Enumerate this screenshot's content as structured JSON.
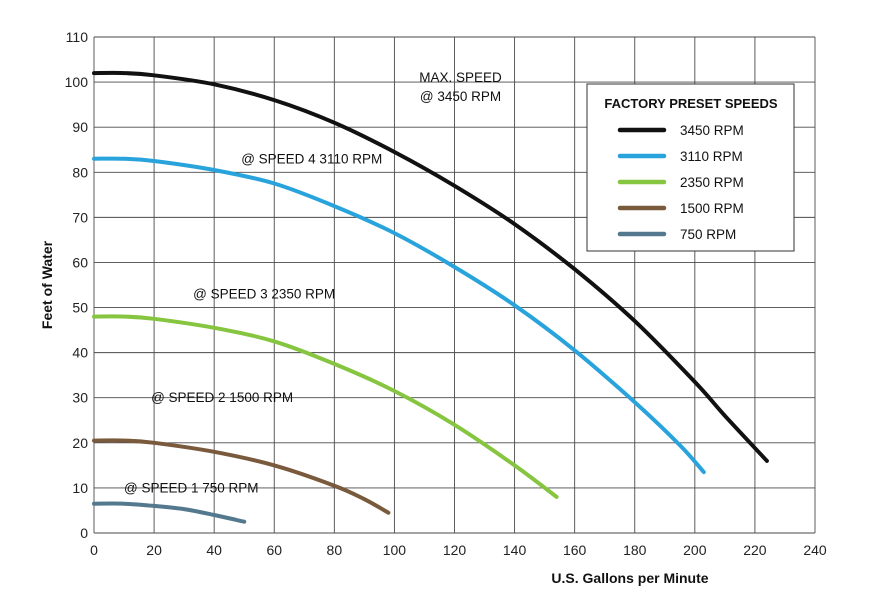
{
  "chart_data": {
    "type": "line",
    "xlabel": "U.S. Gallons per Minute",
    "ylabel": "Feet of Water",
    "xlim": [
      0,
      240
    ],
    "ylim": [
      0,
      110
    ],
    "x_ticks": [
      0,
      20,
      40,
      60,
      80,
      100,
      120,
      140,
      160,
      180,
      200,
      220,
      240
    ],
    "y_ticks": [
      0,
      10,
      20,
      30,
      40,
      50,
      60,
      70,
      80,
      90,
      100,
      110
    ],
    "grid": true,
    "legend": {
      "title": "FACTORY PRESET SPEEDS",
      "position": "top-right"
    },
    "series": [
      {
        "name": "3450 RPM",
        "color": "#111111",
        "points": [
          [
            0,
            102
          ],
          [
            10,
            102
          ],
          [
            20,
            101.5
          ],
          [
            40,
            99.5
          ],
          [
            60,
            96
          ],
          [
            80,
            91
          ],
          [
            100,
            84.5
          ],
          [
            120,
            77
          ],
          [
            140,
            68.5
          ],
          [
            160,
            58.5
          ],
          [
            180,
            47
          ],
          [
            200,
            33.5
          ],
          [
            210,
            26
          ],
          [
            224,
            16
          ]
        ]
      },
      {
        "name": "3110 RPM",
        "color": "#29a3dc",
        "points": [
          [
            0,
            83
          ],
          [
            10,
            83
          ],
          [
            20,
            82.5
          ],
          [
            40,
            80.5
          ],
          [
            60,
            77.5
          ],
          [
            80,
            72.5
          ],
          [
            100,
            66.5
          ],
          [
            120,
            59
          ],
          [
            140,
            50.5
          ],
          [
            160,
            40.5
          ],
          [
            180,
            29
          ],
          [
            195,
            19.5
          ],
          [
            203,
            13.5
          ]
        ]
      },
      {
        "name": "2350 RPM",
        "color": "#86c540",
        "points": [
          [
            0,
            48
          ],
          [
            10,
            48
          ],
          [
            20,
            47.5
          ],
          [
            40,
            45.5
          ],
          [
            60,
            42.5
          ],
          [
            80,
            37.5
          ],
          [
            100,
            31.5
          ],
          [
            120,
            24
          ],
          [
            140,
            15
          ],
          [
            154,
            8
          ]
        ]
      },
      {
        "name": "1500 RPM",
        "color": "#7a5a3c",
        "points": [
          [
            0,
            20.5
          ],
          [
            10,
            20.5
          ],
          [
            20,
            20
          ],
          [
            40,
            18
          ],
          [
            60,
            15
          ],
          [
            80,
            10.5
          ],
          [
            90,
            7.5
          ],
          [
            98,
            4.5
          ]
        ]
      },
      {
        "name": "750 RPM",
        "color": "#54788e",
        "points": [
          [
            0,
            6.5
          ],
          [
            10,
            6.5
          ],
          [
            20,
            6
          ],
          [
            30,
            5.3
          ],
          [
            40,
            4
          ],
          [
            50,
            2.5
          ]
        ]
      }
    ],
    "annotations": [
      {
        "lines": [
          "MAX. SPEED",
          "@ 3450 RPM"
        ],
        "x": 122,
        "y": 100,
        "anchor": "middle"
      },
      {
        "lines": [
          "@ SPEED 4 3110 RPM"
        ],
        "x": 49,
        "y": 82,
        "anchor": "start"
      },
      {
        "lines": [
          "@ SPEED 3 2350 RPM"
        ],
        "x": 33,
        "y": 52,
        "anchor": "start"
      },
      {
        "lines": [
          "@ SPEED 2 1500 RPM"
        ],
        "x": 19,
        "y": 29,
        "anchor": "start"
      },
      {
        "lines": [
          "@ SPEED 1 750 RPM"
        ],
        "x": 10,
        "y": 9,
        "anchor": "start"
      }
    ]
  }
}
